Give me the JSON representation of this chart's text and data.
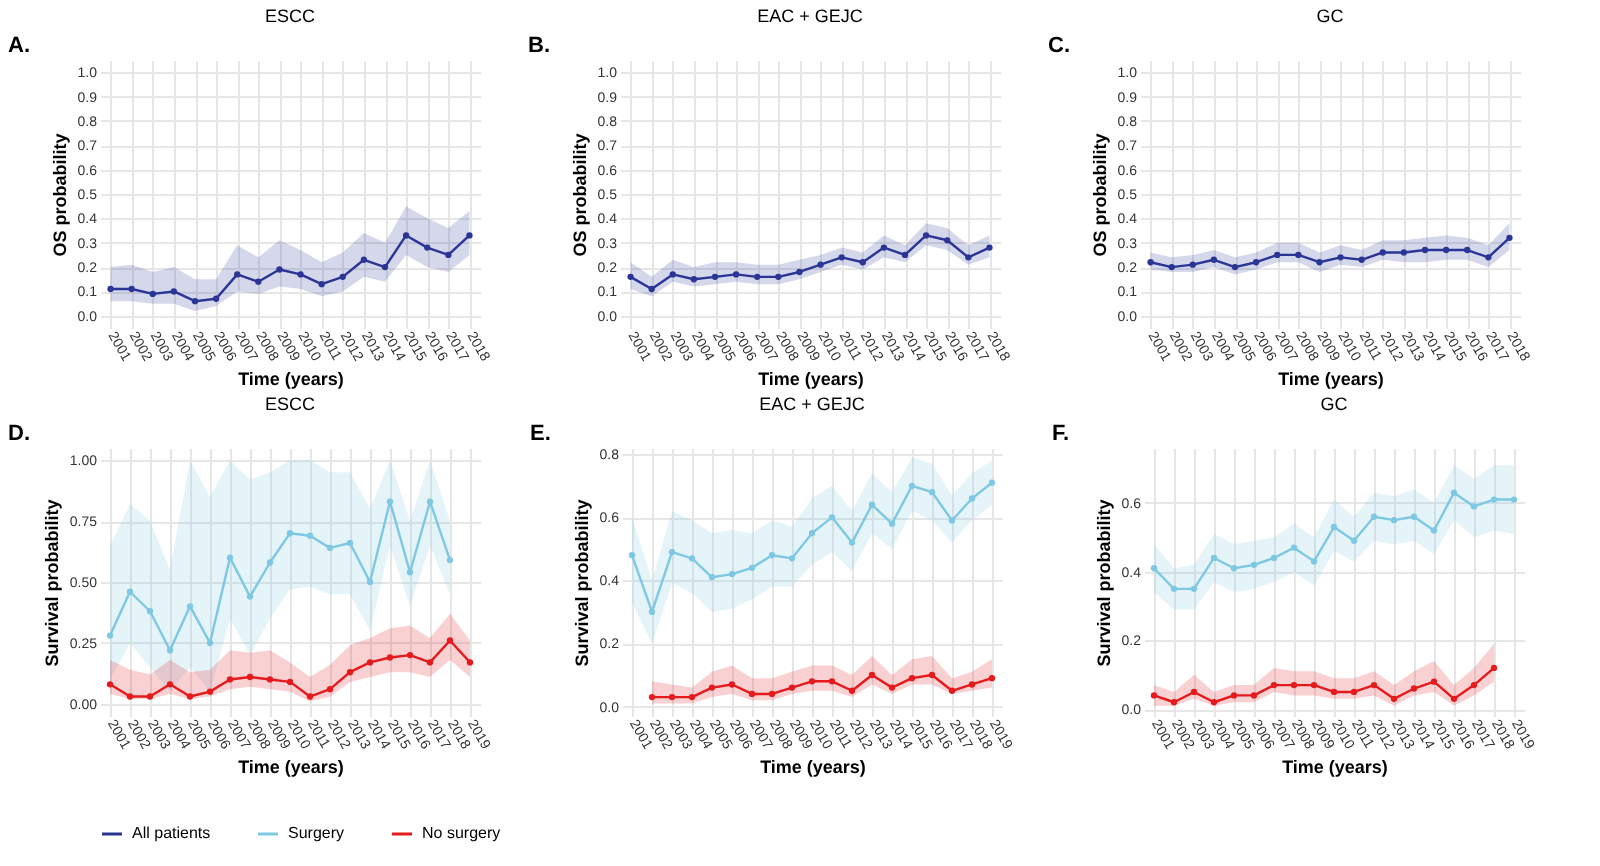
{
  "chart_data": [
    {
      "type": "line",
      "title": "ESCC",
      "annotations": [
        "A."
      ],
      "xlabel": "Time (years)",
      "ylabel": "OS probability",
      "categories": [
        "2001",
        "2002",
        "2003",
        "2004",
        "2005",
        "2006",
        "2007",
        "2008",
        "2009",
        "2010",
        "2011",
        "2012",
        "2013",
        "2014",
        "2015",
        "2016",
        "2017",
        "2018"
      ],
      "ylim": [
        -0.05,
        1.05
      ],
      "yticks": [
        {
          "value": 0,
          "label": "0.0"
        },
        0.1,
        0.2,
        0.3,
        0.4,
        0.5,
        0.6,
        0.7,
        0.8,
        0.9,
        {
          "value": 1,
          "label": "1.0"
        }
      ],
      "grid": true,
      "marker": "circle",
      "legend": "bottom",
      "series": [
        {
          "name": "All patients",
          "color": "#2b3595",
          "values": [
            0.11,
            0.11,
            0.09,
            0.1,
            0.06,
            0.07,
            0.17,
            0.14,
            0.19,
            0.17,
            0.13,
            0.16,
            0.23,
            0.2,
            0.33,
            0.28,
            0.25,
            0.33
          ],
          "lower": [
            0.06,
            0.06,
            0.05,
            0.05,
            0.02,
            0.04,
            0.1,
            0.09,
            0.12,
            0.11,
            0.08,
            0.1,
            0.16,
            0.14,
            0.25,
            0.2,
            0.18,
            0.25
          ],
          "upper": [
            0.2,
            0.21,
            0.18,
            0.2,
            0.15,
            0.15,
            0.29,
            0.24,
            0.31,
            0.27,
            0.22,
            0.26,
            0.34,
            0.3,
            0.45,
            0.4,
            0.36,
            0.43
          ]
        }
      ]
    },
    {
      "type": "line",
      "title": "EAC + GEJC",
      "annotations": [
        "B."
      ],
      "xlabel": "Time (years)",
      "ylabel": "OS probability",
      "categories": [
        "2001",
        "2002",
        "2003",
        "2004",
        "2005",
        "2006",
        "2007",
        "2008",
        "2009",
        "2010",
        "2011",
        "2012",
        "2013",
        "2014",
        "2015",
        "2016",
        "2017",
        "2018"
      ],
      "ylim": [
        -0.05,
        1.05
      ],
      "yticks": [
        {
          "value": 0,
          "label": "0.0"
        },
        0.1,
        0.2,
        0.3,
        0.4,
        0.5,
        0.6,
        0.7,
        0.8,
        0.9,
        {
          "value": 1,
          "label": "1.0"
        }
      ],
      "grid": true,
      "marker": "circle",
      "legend": "bottom",
      "series": [
        {
          "name": "All patients",
          "color": "#2b3595",
          "values": [
            0.16,
            0.11,
            0.17,
            0.15,
            0.16,
            0.17,
            0.16,
            0.16,
            0.18,
            0.21,
            0.24,
            0.22,
            0.28,
            0.25,
            0.33,
            0.31,
            0.24,
            0.28
          ],
          "lower": [
            0.11,
            0.08,
            0.14,
            0.12,
            0.13,
            0.14,
            0.13,
            0.13,
            0.15,
            0.18,
            0.21,
            0.19,
            0.24,
            0.22,
            0.29,
            0.27,
            0.21,
            0.24
          ],
          "upper": [
            0.22,
            0.16,
            0.23,
            0.2,
            0.22,
            0.22,
            0.21,
            0.21,
            0.23,
            0.25,
            0.28,
            0.26,
            0.33,
            0.29,
            0.38,
            0.36,
            0.29,
            0.33
          ]
        }
      ]
    },
    {
      "type": "line",
      "title": "GC",
      "annotations": [
        "C."
      ],
      "xlabel": "Time (years)",
      "ylabel": "OS probability",
      "categories": [
        "2001",
        "2002",
        "2003",
        "2004",
        "2005",
        "2006",
        "2007",
        "2008",
        "2009",
        "2010",
        "2011",
        "2012",
        "2013",
        "2014",
        "2015",
        "2016",
        "2017",
        "2018"
      ],
      "ylim": [
        -0.05,
        1.05
      ],
      "yticks": [
        {
          "value": 0,
          "label": "0.0"
        },
        0.1,
        0.2,
        0.3,
        0.4,
        0.5,
        0.6,
        0.7,
        0.8,
        0.9,
        {
          "value": 1,
          "label": "1.0"
        }
      ],
      "grid": true,
      "marker": "circle",
      "legend": "bottom",
      "series": [
        {
          "name": "All patients",
          "color": "#2b3595",
          "values": [
            0.22,
            0.2,
            0.21,
            0.23,
            0.2,
            0.22,
            0.25,
            0.25,
            0.22,
            0.24,
            0.23,
            0.26,
            0.26,
            0.27,
            0.27,
            0.27,
            0.24,
            0.32
          ],
          "lower": [
            0.19,
            0.18,
            0.18,
            0.2,
            0.17,
            0.19,
            0.22,
            0.22,
            0.18,
            0.21,
            0.2,
            0.23,
            0.22,
            0.22,
            0.23,
            0.23,
            0.2,
            0.27
          ],
          "upper": [
            0.26,
            0.24,
            0.25,
            0.27,
            0.24,
            0.26,
            0.3,
            0.3,
            0.26,
            0.29,
            0.27,
            0.31,
            0.31,
            0.32,
            0.33,
            0.32,
            0.29,
            0.38
          ]
        }
      ]
    },
    {
      "type": "line",
      "title": "ESCC",
      "annotations": [
        "D."
      ],
      "xlabel": "Time (years)",
      "ylabel": "Survival probability",
      "categories": [
        "2001",
        "2002",
        "2003",
        "2004",
        "2005",
        "2006",
        "2007",
        "2008",
        "2009",
        "2010",
        "2011",
        "2012",
        "2013",
        "2014",
        "2015",
        "2016",
        "2017",
        "2018",
        "2019"
      ],
      "ylim": [
        -0.05,
        1.05
      ],
      "yticks": [
        {
          "value": 0,
          "label": "0.00"
        },
        0.25,
        {
          "value": 0.5,
          "label": "0.50"
        },
        0.75,
        {
          "value": 1,
          "label": "1.00"
        }
      ],
      "grid": true,
      "marker": "circle",
      "legend": "bottom",
      "series": [
        {
          "name": "Surgery",
          "color": "#7ec8e3",
          "values": [
            0.28,
            0.46,
            0.38,
            0.22,
            0.4,
            0.25,
            0.6,
            0.44,
            0.58,
            0.7,
            0.69,
            0.64,
            0.66,
            0.5,
            0.83,
            0.54,
            0.83,
            0.59,
            null
          ],
          "lower": [
            0.1,
            0.25,
            0.15,
            0.05,
            0.15,
            0.05,
            0.35,
            0.2,
            0.35,
            0.47,
            0.48,
            0.45,
            0.45,
            0.3,
            0.65,
            0.4,
            0.65,
            0.45,
            null
          ],
          "upper": [
            0.65,
            0.82,
            0.75,
            0.55,
            1.0,
            0.85,
            1.0,
            0.92,
            0.95,
            1.0,
            1.0,
            0.95,
            0.95,
            0.8,
            1.0,
            0.75,
            1.0,
            0.75,
            null
          ]
        },
        {
          "name": "No surgery",
          "color": "#e41a1c",
          "values": [
            0.08,
            0.03,
            0.03,
            0.08,
            0.03,
            0.05,
            0.1,
            0.11,
            0.1,
            0.09,
            0.03,
            0.06,
            0.13,
            0.17,
            0.19,
            0.2,
            0.17,
            0.26,
            0.17
          ],
          "lower": [
            0.04,
            0.02,
            0.02,
            0.04,
            0.02,
            0.03,
            0.06,
            0.07,
            0.06,
            0.05,
            0.01,
            0.03,
            0.09,
            0.11,
            0.13,
            0.13,
            0.11,
            0.18,
            0.11
          ],
          "upper": [
            0.18,
            0.14,
            0.12,
            0.18,
            0.13,
            0.14,
            0.22,
            0.21,
            0.22,
            0.17,
            0.11,
            0.16,
            0.24,
            0.27,
            0.31,
            0.32,
            0.27,
            0.37,
            0.26
          ]
        }
      ]
    },
    {
      "type": "line",
      "title": "EAC + GEJC",
      "annotations": [
        "E."
      ],
      "xlabel": "Time (years)",
      "ylabel": "Survival probability",
      "categories": [
        "2001",
        "2002",
        "2003",
        "2004",
        "2005",
        "2006",
        "2007",
        "2008",
        "2009",
        "2010",
        "2011",
        "2012",
        "2013",
        "2014",
        "2015",
        "2016",
        "2017",
        "2018",
        "2019"
      ],
      "ylim": [
        -0.03,
        0.82
      ],
      "yticks": [
        {
          "value": 0,
          "label": "0.0"
        },
        0.2,
        0.4,
        0.6,
        0.8
      ],
      "grid": true,
      "marker": "circle",
      "legend": "bottom",
      "series": [
        {
          "name": "Surgery",
          "color": "#7ec8e3",
          "values": [
            0.48,
            0.3,
            0.49,
            0.47,
            0.41,
            0.42,
            0.44,
            0.48,
            0.47,
            0.55,
            0.6,
            0.52,
            0.64,
            0.58,
            0.7,
            0.68,
            0.59,
            0.66,
            0.71
          ],
          "lower": [
            0.33,
            0.2,
            0.39,
            0.36,
            0.3,
            0.31,
            0.34,
            0.38,
            0.38,
            0.45,
            0.49,
            0.43,
            0.55,
            0.5,
            0.62,
            0.59,
            0.52,
            0.59,
            0.64
          ],
          "upper": [
            0.6,
            0.4,
            0.62,
            0.59,
            0.55,
            0.56,
            0.55,
            0.59,
            0.57,
            0.66,
            0.7,
            0.62,
            0.74,
            0.68,
            0.79,
            0.77,
            0.67,
            0.74,
            0.78
          ]
        },
        {
          "name": "No surgery",
          "color": "#e41a1c",
          "values": [
            null,
            0.03,
            0.03,
            0.03,
            0.06,
            0.07,
            0.04,
            0.04,
            0.06,
            0.08,
            0.08,
            0.05,
            0.1,
            0.06,
            0.09,
            0.1,
            0.05,
            0.07,
            0.09
          ],
          "lower": [
            null,
            0.01,
            0.01,
            0.01,
            0.03,
            0.04,
            0.02,
            0.02,
            0.04,
            0.05,
            0.05,
            0.03,
            0.07,
            0.04,
            0.07,
            0.07,
            0.04,
            0.05,
            0.06
          ],
          "upper": [
            null,
            0.08,
            0.07,
            0.06,
            0.11,
            0.13,
            0.09,
            0.09,
            0.11,
            0.13,
            0.13,
            0.1,
            0.16,
            0.1,
            0.15,
            0.16,
            0.09,
            0.11,
            0.15
          ]
        }
      ]
    },
    {
      "type": "line",
      "title": "GC",
      "annotations": [
        "F."
      ],
      "xlabel": "Time (years)",
      "ylabel": "Survival probability",
      "categories": [
        "2001",
        "2002",
        "2003",
        "2004",
        "2005",
        "2006",
        "2007",
        "2008",
        "2009",
        "2010",
        "2011",
        "2012",
        "2013",
        "2014",
        "2015",
        "2016",
        "2017",
        "2018",
        "2019"
      ],
      "ylim": [
        -0.02,
        0.76
      ],
      "yticks": [
        {
          "value": 0,
          "label": "0.0"
        },
        0.2,
        0.4,
        0.6
      ],
      "grid": true,
      "marker": "circle",
      "legend": "bottom",
      "series": [
        {
          "name": "Surgery",
          "color": "#7ec8e3",
          "values": [
            0.41,
            0.35,
            0.35,
            0.44,
            0.41,
            0.42,
            0.44,
            0.47,
            0.43,
            0.53,
            0.49,
            0.56,
            0.55,
            0.56,
            0.52,
            0.63,
            0.59,
            0.61,
            0.61
          ],
          "lower": [
            0.34,
            0.29,
            0.29,
            0.37,
            0.34,
            0.35,
            0.37,
            0.4,
            0.36,
            0.46,
            0.43,
            0.49,
            0.48,
            0.49,
            0.45,
            0.55,
            0.5,
            0.52,
            0.51
          ],
          "upper": [
            0.48,
            0.41,
            0.42,
            0.51,
            0.48,
            0.49,
            0.5,
            0.54,
            0.5,
            0.61,
            0.56,
            0.63,
            0.62,
            0.64,
            0.6,
            0.71,
            0.67,
            0.71,
            0.71
          ]
        },
        {
          "name": "No surgery",
          "color": "#e41a1c",
          "values": [
            0.04,
            0.02,
            0.05,
            0.02,
            0.04,
            0.04,
            0.07,
            0.07,
            0.07,
            0.05,
            0.05,
            0.07,
            0.03,
            0.06,
            0.08,
            0.03,
            0.07,
            0.12,
            null
          ],
          "lower": [
            0.01,
            0.01,
            0.03,
            0.01,
            0.02,
            0.02,
            0.05,
            0.04,
            0.04,
            0.03,
            0.03,
            0.04,
            0.01,
            0.04,
            0.05,
            0.01,
            0.04,
            0.08,
            null
          ],
          "upper": [
            0.07,
            0.05,
            0.1,
            0.05,
            0.07,
            0.07,
            0.12,
            0.11,
            0.11,
            0.09,
            0.09,
            0.11,
            0.07,
            0.11,
            0.14,
            0.07,
            0.12,
            0.19,
            null
          ]
        }
      ]
    }
  ]
}
